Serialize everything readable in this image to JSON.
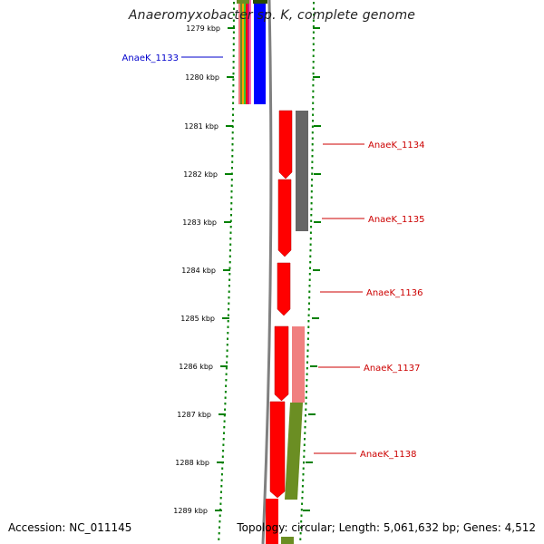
{
  "title": "Anaeromyxobacter sp. K, complete genome",
  "accession": "Accession: NC_011145",
  "summary": "Topology: circular; Length: 5,061,632 bp; Genes: 4,512",
  "ticks": [
    "1279 kbp",
    "1280 kbp",
    "1281 kbp",
    "1282 kbp",
    "1283 kbp",
    "1284 kbp",
    "1285 kbp",
    "1286 kbp",
    "1287 kbp",
    "1288 kbp",
    "1289 kbp"
  ],
  "genes": [
    {
      "label": "AnaeK_1133",
      "color": "#0000cc"
    },
    {
      "label": "AnaeK_1134",
      "color": "#cc0000"
    },
    {
      "label": "AnaeK_1135",
      "color": "#cc0000"
    },
    {
      "label": "AnaeK_1136",
      "color": "#cc0000"
    },
    {
      "label": "AnaeK_1137",
      "color": "#cc0000"
    },
    {
      "label": "AnaeK_1138",
      "color": "#cc0000"
    }
  ],
  "colors": {
    "cds": "#ff0000",
    "blue_feature": "#0000ff",
    "gray_feature": "#666666",
    "pink_feature": "#f08080",
    "olive_feature": "#6b8e23",
    "backbone": "#808080",
    "tick": "#008000"
  }
}
